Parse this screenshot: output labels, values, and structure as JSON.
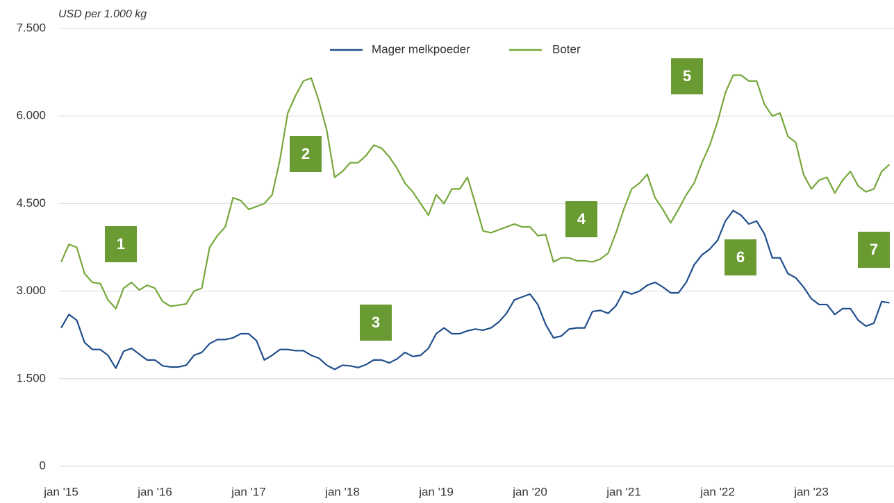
{
  "chart_data": {
    "type": "line",
    "y_axis_label": "USD per 1.000 kg",
    "categories": [
      "jan '15",
      null,
      null,
      null,
      null,
      null,
      null,
      null,
      null,
      null,
      null,
      null,
      "jan '16",
      null,
      null,
      null,
      null,
      null,
      null,
      null,
      null,
      null,
      null,
      null,
      "jan '17",
      null,
      null,
      null,
      null,
      null,
      null,
      null,
      null,
      null,
      null,
      null,
      "jan '18",
      null,
      null,
      null,
      null,
      null,
      null,
      null,
      null,
      null,
      null,
      null,
      "jan '19",
      null,
      null,
      null,
      null,
      null,
      null,
      null,
      null,
      null,
      null,
      null,
      "jan '20",
      null,
      null,
      null,
      null,
      null,
      null,
      null,
      null,
      null,
      null,
      null,
      "jan '21",
      null,
      null,
      null,
      null,
      null,
      null,
      null,
      null,
      null,
      null,
      null,
      "jan '22",
      null,
      null,
      null,
      null,
      null,
      null,
      null,
      null,
      null,
      null,
      null,
      "jan '23",
      null,
      null,
      null,
      null,
      null,
      null,
      null,
      null,
      null,
      null
    ],
    "series": [
      {
        "name": "Mager melkpoeder",
        "color": "#1f4e8c",
        "values": [
          2370,
          2600,
          2500,
          2120,
          2000,
          2000,
          1900,
          1680,
          1970,
          2020,
          1920,
          1820,
          1820,
          1720,
          1700,
          1700,
          1730,
          1900,
          1950,
          2100,
          2170,
          2170,
          2200,
          2270,
          2270,
          2150,
          1820,
          1900,
          2000,
          2000,
          1980,
          1980,
          1900,
          1850,
          1730,
          1660,
          1730,
          1720,
          1690,
          1740,
          1820,
          1820,
          1770,
          1840,
          1950,
          1880,
          1900,
          2020,
          2270,
          2370,
          2270,
          2270,
          2320,
          2350,
          2330,
          2370,
          2470,
          2620,
          2850,
          2900,
          2950,
          2770,
          2430,
          2200,
          2230,
          2350,
          2370,
          2370,
          2650,
          2670,
          2620,
          2750,
          3000,
          2950,
          3000,
          3100,
          3150,
          3070,
          2970,
          2970,
          3150,
          3450,
          3620,
          3720,
          3870,
          4200,
          4380,
          4300,
          4150,
          4200,
          3980,
          3570,
          3570,
          3300,
          3230,
          3070,
          2870,
          2770,
          2770,
          2600,
          2700,
          2700,
          2500,
          2400,
          2450,
          2820,
          2800
        ]
      },
      {
        "name": "Boter",
        "color": "#76a73a",
        "values": [
          3500,
          3800,
          3750,
          3300,
          3150,
          3130,
          2850,
          2700,
          3050,
          3150,
          3020,
          3100,
          3050,
          2820,
          2740,
          2760,
          2780,
          3000,
          3050,
          3750,
          3950,
          4100,
          4600,
          4550,
          4400,
          4450,
          4500,
          4650,
          5250,
          6050,
          6350,
          6600,
          6650,
          6250,
          5750,
          4950,
          5050,
          5200,
          5200,
          5320,
          5500,
          5450,
          5300,
          5100,
          4850,
          4700,
          4500,
          4300,
          4650,
          4500,
          4750,
          4750,
          4950,
          4500,
          4030,
          4000,
          4050,
          4100,
          4150,
          4100,
          4100,
          3950,
          3970,
          3500,
          3570,
          3570,
          3520,
          3520,
          3500,
          3550,
          3650,
          4000,
          4400,
          4750,
          4850,
          5000,
          4600,
          4400,
          4170,
          4400,
          4650,
          4850,
          5200,
          5500,
          5900,
          6400,
          6700,
          6700,
          6600,
          6600,
          6200,
          6000,
          6050,
          5650,
          5550,
          5000,
          4750,
          4900,
          4950,
          4680,
          4900,
          5050,
          4800,
          4700,
          4750,
          5050,
          5170
        ]
      }
    ],
    "ylim": [
      0,
      7500
    ],
    "yticks": [
      0,
      {
        "value": 1500,
        "label": "1.500"
      },
      {
        "value": 3000,
        "label": "3.000"
      },
      {
        "value": 4500,
        "label": "4.500"
      },
      {
        "value": 6000,
        "label": "6.000"
      },
      {
        "value": 7500,
        "label": "7.500"
      }
    ],
    "grid": true,
    "legend": "top",
    "annotations": [
      "1",
      "2",
      "3",
      "4",
      "5",
      "6",
      "7"
    ],
    "annotation_color": "#6a9a32"
  }
}
